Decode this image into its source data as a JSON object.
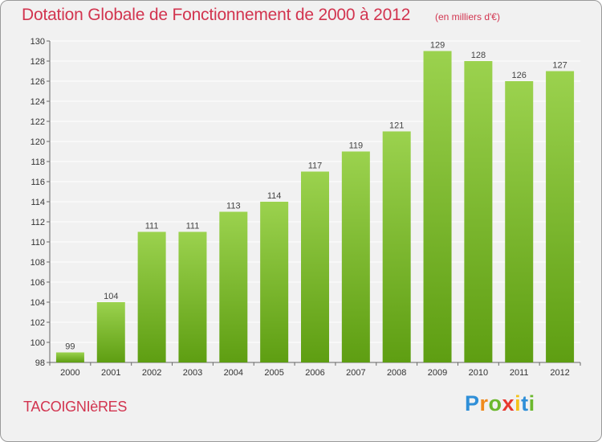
{
  "header": {
    "title": "Dotation Globale de Fonctionnement de 2000 à 2012",
    "unit_note": "(en milliers d'€)"
  },
  "footer": {
    "commune": "TACOIGNIèRES",
    "logo": {
      "letters": [
        "P",
        "r",
        "o",
        "x",
        "i",
        "t",
        "i"
      ],
      "colors": [
        "#2f8fd8",
        "#f08a1c",
        "#6cb82e",
        "#e8392f",
        "#f4c21a",
        "#2f8fd8",
        "#6cb82e"
      ]
    }
  },
  "colors": {
    "title": "#d2344f",
    "bar_top": "#9bd24e",
    "bar_bottom": "#5e9e12",
    "grid": "#ffffff",
    "background": "#f1f1f1"
  },
  "chart_data": {
    "type": "bar",
    "title": "Dotation Globale de Fonctionnement de 2000 à 2012",
    "xlabel": "",
    "ylabel": "",
    "categories": [
      "2000",
      "2001",
      "2002",
      "2003",
      "2004",
      "2005",
      "2006",
      "2007",
      "2008",
      "2009",
      "2010",
      "2011",
      "2012"
    ],
    "values": [
      99,
      104,
      111,
      111,
      113,
      114,
      117,
      119,
      121,
      129,
      128,
      126,
      127
    ],
    "ylim": [
      98,
      130
    ],
    "yticks": [
      98,
      100,
      102,
      104,
      106,
      108,
      110,
      112,
      114,
      116,
      118,
      120,
      122,
      124,
      126,
      128,
      130
    ],
    "grid": true,
    "legend": "none"
  }
}
